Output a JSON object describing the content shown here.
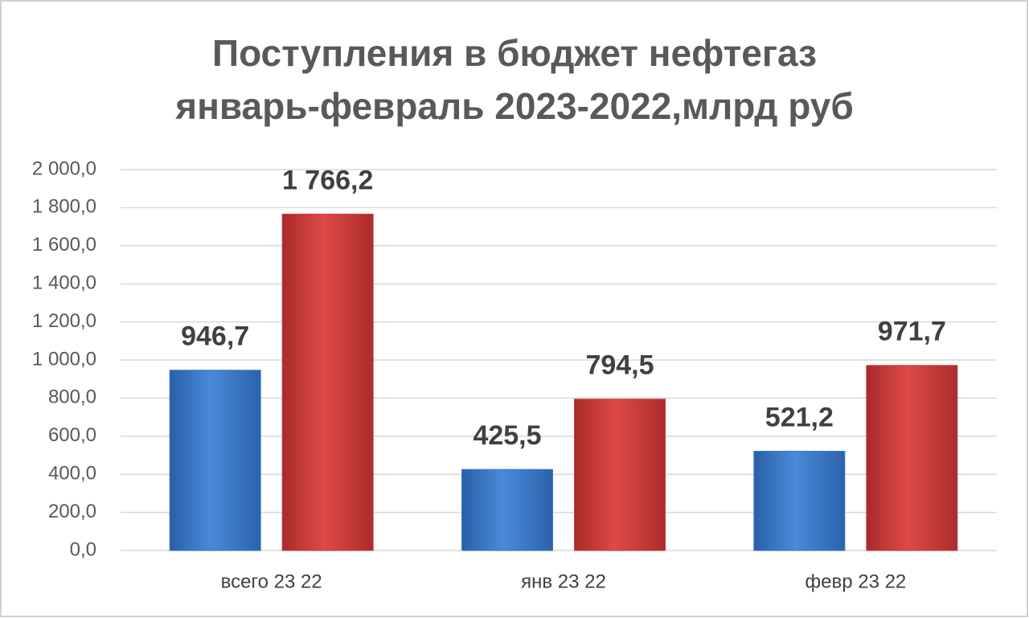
{
  "chart_data": {
    "type": "bar",
    "title": [
      "Поступления в бюджет нефтегаз",
      "январь-февраль 2023-2022,млрд руб"
    ],
    "categories": [
      "всего 23 22",
      "янв 23 22",
      "февр 23 22"
    ],
    "series": [
      {
        "color": "#3b78c8",
        "values": [
          946.7,
          425.5,
          521.2
        ],
        "value_labels": [
          "946,7",
          "425,5",
          "521,2"
        ]
      },
      {
        "color": "#cf3b3b",
        "values": [
          1766.2,
          794.5,
          971.7
        ],
        "value_labels": [
          "1 766,2",
          "794,5",
          "971,7"
        ]
      }
    ],
    "ylim": [
      0,
      2000
    ],
    "yticks": [
      {
        "value": 0,
        "label": "0,0"
      },
      {
        "value": 200,
        "label": "200,0"
      },
      {
        "value": 400,
        "label": "400,0"
      },
      {
        "value": 600,
        "label": "600,0"
      },
      {
        "value": 800,
        "label": "800,0"
      },
      {
        "value": 1000,
        "label": "1 000,0"
      },
      {
        "value": 1200,
        "label": "1 200,0"
      },
      {
        "value": 1400,
        "label": "1 400,0"
      },
      {
        "value": 1600,
        "label": "1 600,0"
      },
      {
        "value": 1800,
        "label": "1 800,0"
      },
      {
        "value": 2000,
        "label": "2 000,0"
      }
    ],
    "grid": true
  }
}
